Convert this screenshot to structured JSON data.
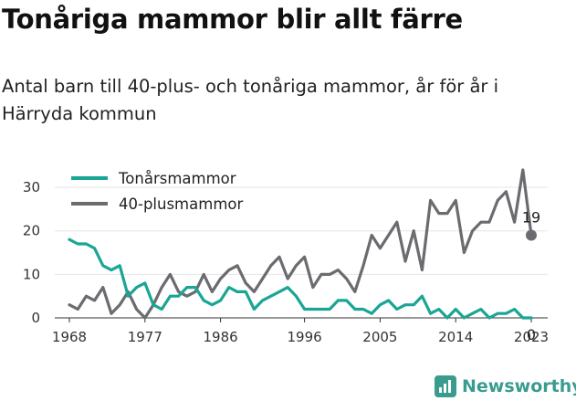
{
  "header": {
    "title": "Tonåriga mammor blir allt färre",
    "subtitle": "Antal barn till 40-plus- och tonåriga mammor, år för år i Härryda kommun"
  },
  "brand": {
    "name": "Newsworthy",
    "icon": "newsworthy-chart-icon",
    "color": "#3a9c8f"
  },
  "chart_data": {
    "type": "line",
    "title": "Tonåriga mammor blir allt färre",
    "subtitle": "Antal barn till 40-plus- och tonåriga mammor, år för år i Härryda kommun",
    "xlabel": "",
    "ylabel": "",
    "xlim": [
      1968,
      2023
    ],
    "ylim": [
      0,
      34
    ],
    "x_ticks": [
      "1968",
      "1977",
      "1986",
      "1996",
      "2005",
      "2014",
      "2023"
    ],
    "y_ticks": [
      "0",
      "10",
      "20",
      "30"
    ],
    "grid": "horizontal",
    "legend": "top-left",
    "x": [
      1968,
      1969,
      1970,
      1971,
      1972,
      1973,
      1974,
      1975,
      1976,
      1977,
      1978,
      1979,
      1980,
      1981,
      1982,
      1983,
      1984,
      1985,
      1986,
      1987,
      1988,
      1989,
      1990,
      1991,
      1992,
      1993,
      1994,
      1995,
      1996,
      1997,
      1998,
      1999,
      2000,
      2001,
      2002,
      2003,
      2004,
      2005,
      2006,
      2007,
      2008,
      2009,
      2010,
      2011,
      2012,
      2013,
      2014,
      2015,
      2016,
      2017,
      2018,
      2019,
      2020,
      2021,
      2022,
      2023
    ],
    "series": [
      {
        "name": "Tonårsmammor",
        "color": "#1aa595",
        "values": [
          18,
          17,
          17,
          16,
          12,
          11,
          12,
          5,
          7,
          8,
          3,
          2,
          5,
          5,
          7,
          7,
          4,
          3,
          4,
          7,
          6,
          6,
          2,
          4,
          5,
          6,
          7,
          5,
          2,
          2,
          2,
          2,
          4,
          4,
          2,
          2,
          1,
          3,
          4,
          2,
          3,
          3,
          5,
          1,
          2,
          0,
          2,
          0,
          1,
          2,
          0,
          1,
          1,
          2,
          0,
          0
        ],
        "end_label": "0"
      },
      {
        "name": "40-plusmammor",
        "color": "#6b6b70",
        "values": [
          3,
          2,
          5,
          4,
          7,
          1,
          3,
          6,
          2,
          0,
          3,
          7,
          10,
          6,
          5,
          6,
          10,
          6,
          9,
          11,
          12,
          8,
          6,
          9,
          12,
          14,
          9,
          12,
          14,
          7,
          10,
          10,
          11,
          9,
          6,
          12,
          19,
          16,
          19,
          22,
          13,
          20,
          11,
          27,
          24,
          24,
          27,
          15,
          20,
          22,
          22,
          27,
          29,
          22,
          34,
          19
        ],
        "end_label": "19"
      }
    ]
  }
}
